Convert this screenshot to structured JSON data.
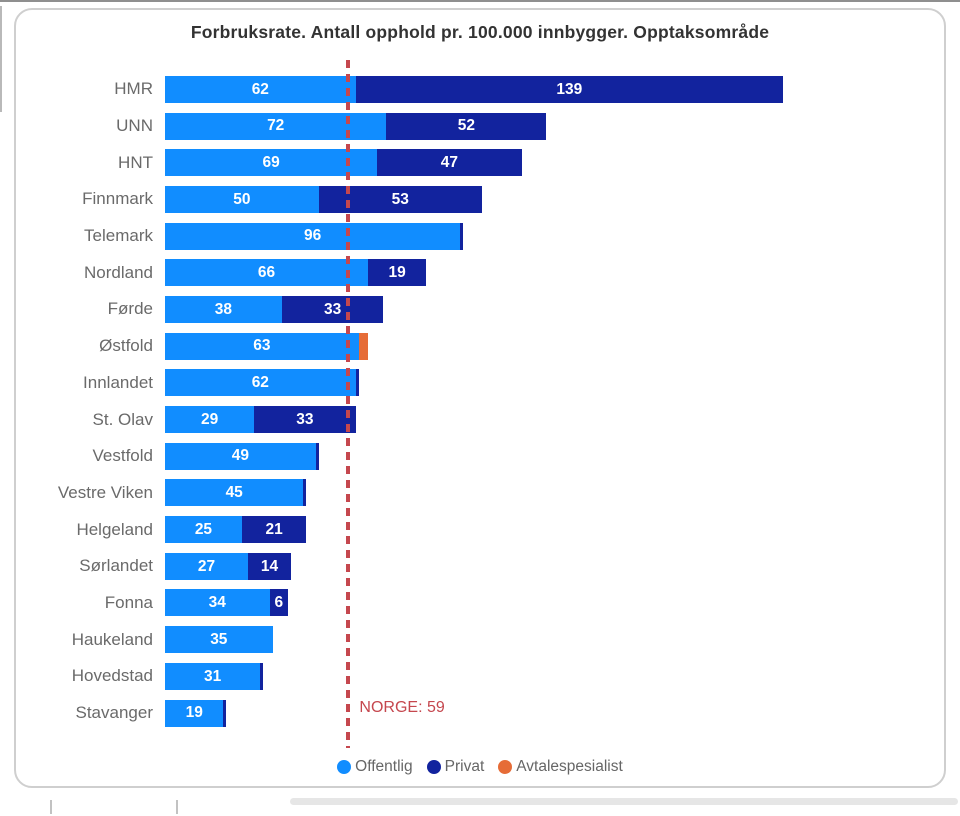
{
  "title": "Forbruksrate. Antall opphold pr. 100.000 innbygger. Opptaksområde",
  "colors": {
    "offentlig": "#118DFF",
    "privat": "#12239E",
    "avtalespesialist": "#E66C37",
    "reference_red": "#C5474E",
    "category_text": "#6A6A6A",
    "value_text": "#FFFFFF"
  },
  "chart_data": {
    "type": "bar",
    "orientation": "horizontal",
    "stacked": true,
    "title": "Forbruksrate. Antall opphold pr. 100.000 innbygger. Opptaksområde",
    "categories": [
      "HMR",
      "UNN",
      "HNT",
      "Finnmark",
      "Telemark",
      "Nordland",
      "Førde",
      "Østfold",
      "Innlandet",
      "St. Olav",
      "Vestfold",
      "Vestre Viken",
      "Helgeland",
      "Sørlandet",
      "Fonna",
      "Haukeland",
      "Hovedstad",
      "Stavanger"
    ],
    "series": [
      {
        "name": "Offentlig",
        "color": "#118DFF",
        "values": [
          62,
          72,
          69,
          50,
          96,
          66,
          38,
          63,
          62,
          29,
          49,
          45,
          25,
          27,
          34,
          35,
          31,
          19
        ]
      },
      {
        "name": "Privat",
        "color": "#12239E",
        "values": [
          139,
          52,
          47,
          53,
          1,
          19,
          33,
          0,
          1,
          33,
          1,
          1,
          21,
          14,
          6,
          0,
          1,
          1
        ]
      },
      {
        "name": "Avtalespesialist",
        "color": "#E66C37",
        "values": [
          0,
          0,
          0,
          0,
          0,
          0,
          0,
          3,
          0,
          0,
          0,
          0,
          0,
          0,
          0,
          0,
          0,
          0
        ]
      }
    ],
    "reference_line": {
      "label": "NORGE: 59",
      "value": 59,
      "color": "#C5474E"
    },
    "legend": [
      "Offentlig",
      "Privat",
      "Avtalespesialist"
    ],
    "legend_position": "bottom",
    "xlim": [
      0,
      210
    ],
    "grid": false
  }
}
